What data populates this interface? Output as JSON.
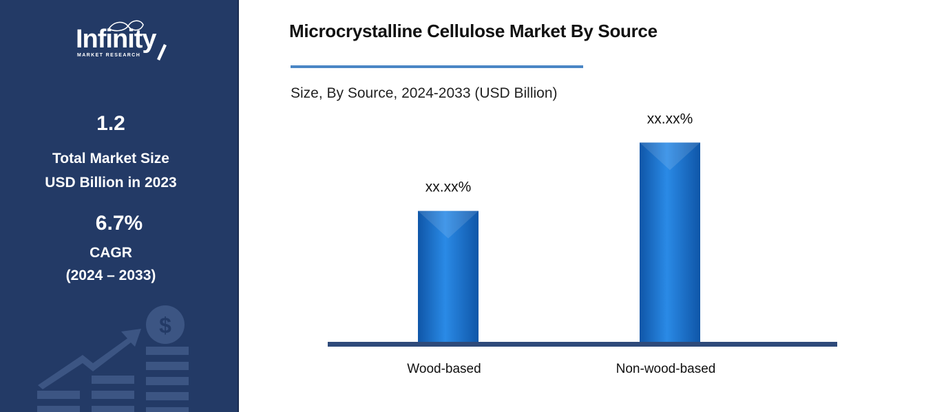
{
  "logo": {
    "word": "Infinity",
    "sub": "MARKET RESEARCH"
  },
  "stats": {
    "market_size_value": "1.2",
    "market_size_label_1": "Total Market Size",
    "market_size_label_2": "USD Billion in 2023",
    "cagr_value": "6.7%",
    "cagr_label": "CAGR",
    "cagr_period": "(2024 – 2033)"
  },
  "colors": {
    "sidebar": "#233a66",
    "accent": "#4a86c5",
    "bar": "#1f7ad6",
    "axis": "#2e4a7a"
  },
  "icons": [
    "dollar-coin-icon",
    "growth-arrow-icon"
  ],
  "chart_data": {
    "type": "bar",
    "title": "Microcrystalline Cellulose Market By Source",
    "subtitle": "Size, By Source, 2024-2033 (USD Billion)",
    "categories": [
      "Wood-based",
      "Non-wood-based"
    ],
    "values": [
      0.52,
      0.79
    ],
    "data_labels": [
      "xx.xx%",
      "xx.xx%"
    ],
    "ylim": [
      0,
      1
    ],
    "grid": false,
    "xlabel": "",
    "ylabel": ""
  }
}
